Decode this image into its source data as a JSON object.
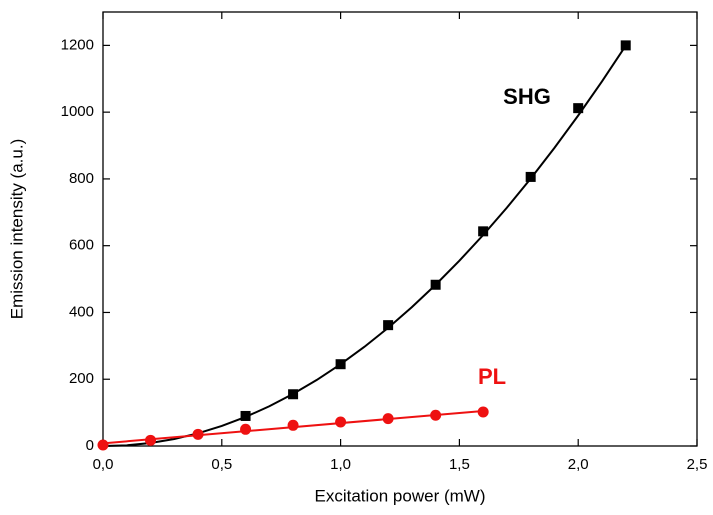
{
  "chart_data": {
    "type": "scatter",
    "xlabel": "Excitation power (mW)",
    "ylabel": "Emission intensity (a.u.)",
    "xlim": [
      0,
      2.5
    ],
    "ylim": [
      0,
      1300
    ],
    "xticks": [
      {
        "value": 0,
        "label": "0,0"
      },
      {
        "value": 0.5,
        "label": "0,5"
      },
      {
        "value": 1,
        "label": "1,0"
      },
      {
        "value": 1.5,
        "label": "1,5"
      },
      {
        "value": 2,
        "label": "2,0"
      },
      {
        "value": 2.5,
        "label": "2,5"
      }
    ],
    "yticks": [
      0,
      200,
      400,
      600,
      800,
      1000,
      1200
    ],
    "series": [
      {
        "label": "SHG",
        "color": "#000000",
        "marker": "square",
        "x": [
          0.6,
          0.8,
          1.0,
          1.2,
          1.4,
          1.6,
          1.8,
          2.0,
          2.2
        ],
        "values": [
          90,
          155,
          245,
          362,
          483,
          643,
          806,
          1012,
          1200
        ],
        "fit": {
          "x": [
            0,
            0.1,
            0.2,
            0.3,
            0.4,
            0.5,
            0.6,
            0.7,
            0.8,
            0.9,
            1.0,
            1.1,
            1.2,
            1.3,
            1.4,
            1.5,
            1.6,
            1.7,
            1.8,
            1.9,
            2.0,
            2.1,
            2.2
          ],
          "values": [
            0,
            2,
            9,
            21,
            38,
            60,
            87,
            119,
            156,
            198,
            245,
            297,
            354,
            416,
            483,
            555,
            632,
            714,
            801,
            893,
            990,
            1092,
            1199
          ]
        }
      },
      {
        "label": "PL",
        "color": "#ee1111",
        "marker": "circle",
        "x": [
          0,
          0.2,
          0.4,
          0.6,
          0.8,
          1.0,
          1.2,
          1.4,
          1.6
        ],
        "values": [
          3,
          17,
          35,
          50,
          62,
          72,
          82,
          92,
          102
        ],
        "fit": {
          "x": [
            0,
            1.6
          ],
          "values": [
            8,
            105
          ]
        }
      }
    ]
  }
}
